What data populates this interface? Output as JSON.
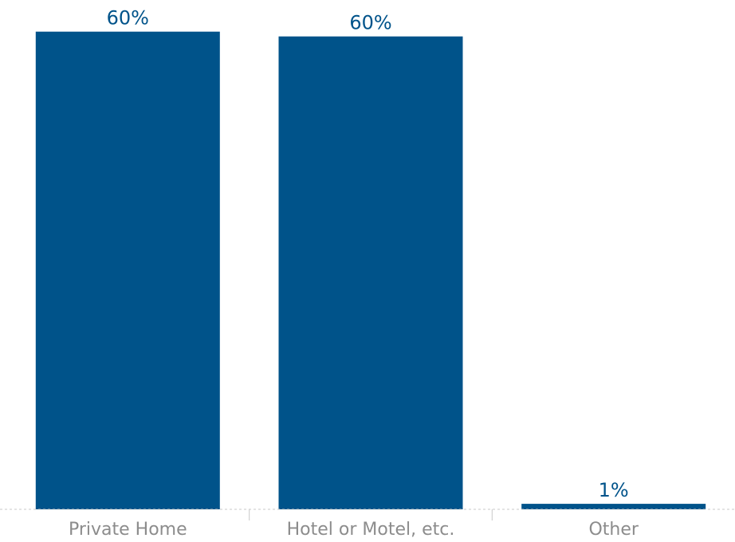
{
  "chart_data": {
    "type": "bar",
    "categories": [
      "Private Home",
      "Hotel or Motel, etc.",
      "Other"
    ],
    "values": [
      60.4,
      59.8,
      0.7
    ],
    "value_labels": [
      "60%",
      "60%",
      "1%"
    ],
    "title": "",
    "xlabel": "",
    "ylabel": "",
    "ylim": [
      0,
      64
    ],
    "grid": false,
    "legend": "none",
    "colors": {
      "bar": "#00538a",
      "value_label": "#00538a",
      "tick_label": "#8c8c8c",
      "axis_line": "#c8c8c8"
    }
  }
}
